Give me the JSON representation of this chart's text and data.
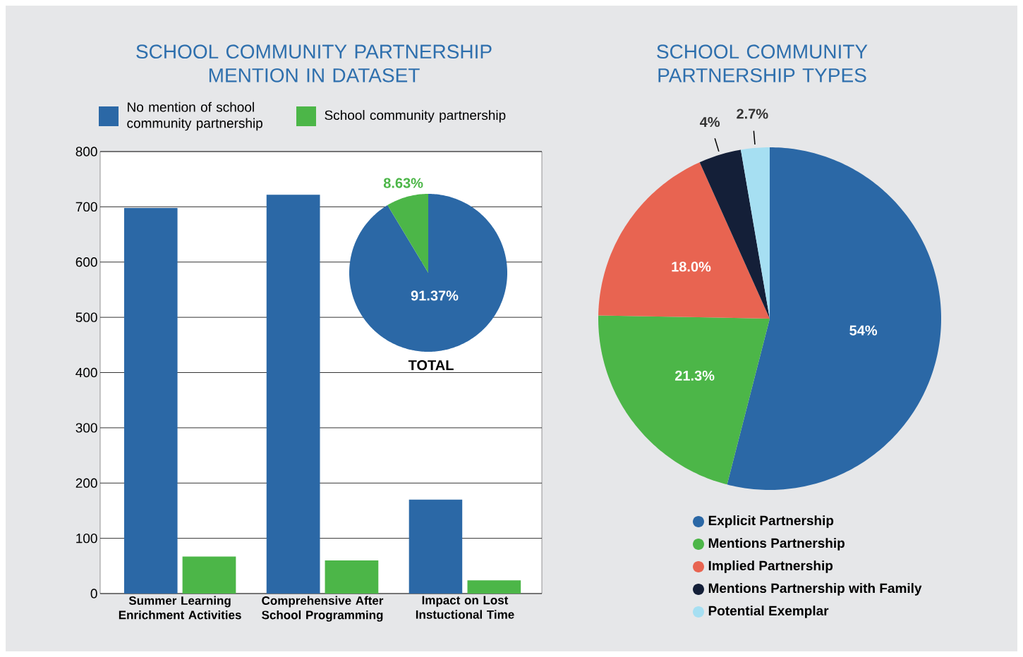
{
  "chart_data": [
    {
      "type": "bar",
      "title": "SCHOOL COMMUNITY PARTNERSHIP MENTION IN DATASET",
      "categories": [
        "Summer Learning Enrichment Activities",
        "Comprehensive After School Programming",
        "Impact on Lost Instuctional Time"
      ],
      "series": [
        {
          "name": "No mention of school community partnership",
          "color": "#2b68a6",
          "values": [
            698,
            722,
            170
          ]
        },
        {
          "name": "School community partnership",
          "color": "#4cb648",
          "values": [
            67,
            60,
            24
          ]
        }
      ],
      "ylim": [
        0,
        800
      ],
      "yticks": [
        0,
        100,
        200,
        300,
        400,
        500,
        600,
        700,
        800
      ],
      "grid": "y",
      "legend": "top"
    },
    {
      "type": "pie",
      "title": "TOTAL",
      "categories": [
        null,
        null
      ],
      "values": [
        91.37,
        8.63
      ],
      "colors": [
        "#2b68a6",
        "#4cb648"
      ],
      "value_labels": [
        "91.37%",
        "8.63%"
      ]
    },
    {
      "type": "pie",
      "title": "SCHOOL COMMUNITY PARTNERSHIP TYPES",
      "categories": [
        "Explicit Partnership",
        "Mentions Partnership",
        "Implied Partnership",
        "Mentions Partnership with Family",
        "Potential Exemplar"
      ],
      "values": [
        54,
        21.3,
        18.0,
        4,
        2.7
      ],
      "colors": [
        "#2b68a6",
        "#4cb648",
        "#e86451",
        "#141f38",
        "#a6dff2"
      ],
      "value_labels": [
        "54%",
        "21.3%",
        "18.0%",
        "4%",
        "2.7%"
      ],
      "legend": "bottom"
    }
  ]
}
